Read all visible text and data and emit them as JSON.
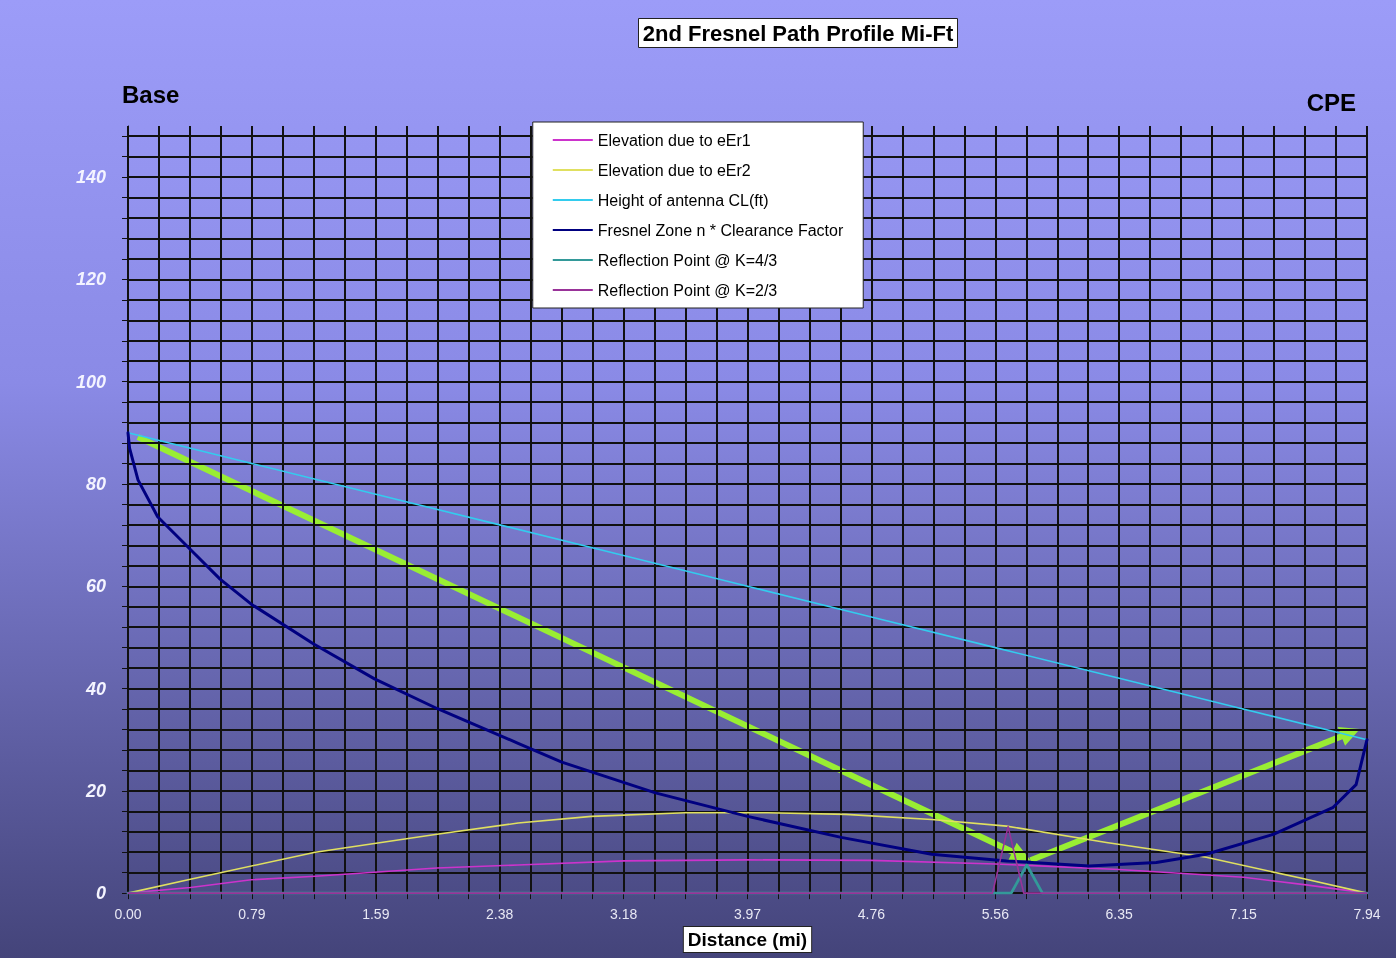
{
  "chart_data": {
    "type": "line",
    "title": "2nd Fresnel Path Profile Mi-Ft",
    "xlabel": "Distance (mi)",
    "annotations": [
      "Base",
      "CPE"
    ],
    "xlim": [
      0,
      7.94
    ],
    "ylim": [
      0,
      150
    ],
    "xticks": [
      {
        "value": 0,
        "label": "0.00"
      },
      {
        "value": 0.1985,
        "label": null
      },
      {
        "value": 0.397,
        "label": null
      },
      {
        "value": 0.5955,
        "label": null
      },
      {
        "value": 0.794,
        "label": "0.79"
      },
      {
        "value": 0.9925,
        "label": null
      },
      {
        "value": 1.191,
        "label": null
      },
      {
        "value": 1.3895,
        "label": null
      },
      {
        "value": 1.588,
        "label": "1.59"
      },
      {
        "value": 1.7865,
        "label": null
      },
      {
        "value": 1.985,
        "label": null
      },
      {
        "value": 2.1835,
        "label": null
      },
      {
        "value": 2.382,
        "label": "2.38"
      },
      {
        "value": 2.5805,
        "label": null
      },
      {
        "value": 2.779,
        "label": null
      },
      {
        "value": 2.9775,
        "label": null
      },
      {
        "value": 3.176,
        "label": "3.18"
      },
      {
        "value": 3.3745,
        "label": null
      },
      {
        "value": 3.573,
        "label": null
      },
      {
        "value": 3.7715,
        "label": null
      },
      {
        "value": 3.97,
        "label": "3.97"
      },
      {
        "value": 4.1685,
        "label": null
      },
      {
        "value": 4.367,
        "label": null
      },
      {
        "value": 4.5655,
        "label": null
      },
      {
        "value": 4.764,
        "label": "4.76"
      },
      {
        "value": 4.9625,
        "label": null
      },
      {
        "value": 5.161,
        "label": null
      },
      {
        "value": 5.3595,
        "label": null
      },
      {
        "value": 5.558,
        "label": "5.56"
      },
      {
        "value": 5.7565,
        "label": null
      },
      {
        "value": 5.955,
        "label": null
      },
      {
        "value": 6.1535,
        "label": null
      },
      {
        "value": 6.352,
        "label": "6.35"
      },
      {
        "value": 6.5505,
        "label": null
      },
      {
        "value": 6.749,
        "label": null
      },
      {
        "value": 6.9475,
        "label": null
      },
      {
        "value": 7.146,
        "label": "7.15"
      },
      {
        "value": 7.3445,
        "label": null
      },
      {
        "value": 7.543,
        "label": null
      },
      {
        "value": 7.7415,
        "label": null
      },
      {
        "value": 7.94,
        "label": "7.94"
      }
    ],
    "yticks": [
      0,
      {
        "value": 4,
        "label": null
      },
      {
        "value": 8,
        "label": null
      },
      {
        "value": 12,
        "label": null
      },
      {
        "value": 16,
        "label": null
      },
      20,
      {
        "value": 24,
        "label": null
      },
      {
        "value": 28,
        "label": null
      },
      {
        "value": 32,
        "label": null
      },
      {
        "value": 36,
        "label": null
      },
      40,
      {
        "value": 44,
        "label": null
      },
      {
        "value": 48,
        "label": null
      },
      {
        "value": 52,
        "label": null
      },
      {
        "value": 56,
        "label": null
      },
      60,
      {
        "value": 64,
        "label": null
      },
      {
        "value": 68,
        "label": null
      },
      {
        "value": 72,
        "label": null
      },
      {
        "value": 76,
        "label": null
      },
      80,
      {
        "value": 84,
        "label": null
      },
      {
        "value": 88,
        "label": null
      },
      {
        "value": 92,
        "label": null
      },
      {
        "value": 96,
        "label": null
      },
      100,
      {
        "value": 104,
        "label": null
      },
      {
        "value": 108,
        "label": null
      },
      {
        "value": 112,
        "label": null
      },
      {
        "value": 116,
        "label": null
      },
      120,
      {
        "value": 124,
        "label": null
      },
      {
        "value": 128,
        "label": null
      },
      {
        "value": 132,
        "label": null
      },
      {
        "value": 136,
        "label": null
      },
      140,
      {
        "value": 144,
        "label": null
      },
      {
        "value": 148,
        "label": null
      }
    ],
    "grid": true,
    "legend": "top",
    "marker": "none",
    "line_style": "solid",
    "series": [
      {
        "name": "Elevation due to eEr1",
        "color": "#cc33cc",
        "x": [
          0,
          0.4,
          0.79,
          1.2,
          1.98,
          2.5,
          3.18,
          3.97,
          4.76,
          5.56,
          6.35,
          7.15,
          7.55,
          7.94
        ],
        "values": [
          0,
          1.1,
          2.6,
          3.3,
          4.9,
          5.5,
          6.3,
          6.5,
          6.4,
          5.7,
          4.6,
          3.1,
          1.6,
          0
        ]
      },
      {
        "name": "Elevation due to eEr2",
        "color": "#e0e060",
        "x": [
          0,
          0.4,
          1.2,
          1.98,
          2.5,
          2.97,
          3.57,
          4.1,
          4.6,
          5.15,
          5.63,
          6.27,
          6.91,
          7.55,
          7.94
        ],
        "values": [
          0,
          2.7,
          8,
          11.5,
          13.7,
          15,
          15.7,
          15.7,
          15.4,
          14.4,
          13.1,
          9.9,
          7,
          2.7,
          0
        ]
      },
      {
        "name": "Height of antenna CL(ft)",
        "color": "#33ccee",
        "x": [
          0,
          0.794,
          1.588,
          2.382,
          3.176,
          3.97,
          4.764,
          5.558,
          6.352,
          7.146,
          7.94
        ],
        "values": [
          90,
          84,
          78,
          72,
          66,
          60,
          54,
          48,
          42,
          36,
          30
        ]
      },
      {
        "name": "Fresnel Zone n * Clearance Factor",
        "color": "#000080",
        "x": [
          0,
          0.01,
          0.064,
          0.19,
          0.4,
          0.59,
          0.79,
          1.19,
          1.58,
          1.98,
          2.5,
          2.78,
          3.38,
          3.97,
          4.57,
          5.15,
          5.63,
          6.16,
          6.59,
          6.91,
          7.34,
          7.72,
          7.87,
          7.94
        ],
        "values": [
          90,
          87,
          80.8,
          73.6,
          67.2,
          61.4,
          56.5,
          48.7,
          41.9,
          36.1,
          29.3,
          25.6,
          19.6,
          15,
          10.9,
          7.6,
          6.3,
          5.3,
          6,
          7.6,
          11.5,
          16.7,
          21.2,
          30
        ]
      },
      {
        "name": "Reflection Point @ K=4/3",
        "color": "#339999",
        "x": [
          0,
          5.66,
          5.76,
          5.86,
          7.94
        ],
        "values": [
          0,
          0,
          5.5,
          0,
          0
        ]
      },
      {
        "name": "Reflection Point @ K=2/3",
        "color": "#993399",
        "x": [
          0,
          5.54,
          5.64,
          5.74,
          7.94
        ],
        "values": [
          0,
          0,
          13,
          0,
          0
        ]
      }
    ]
  }
}
